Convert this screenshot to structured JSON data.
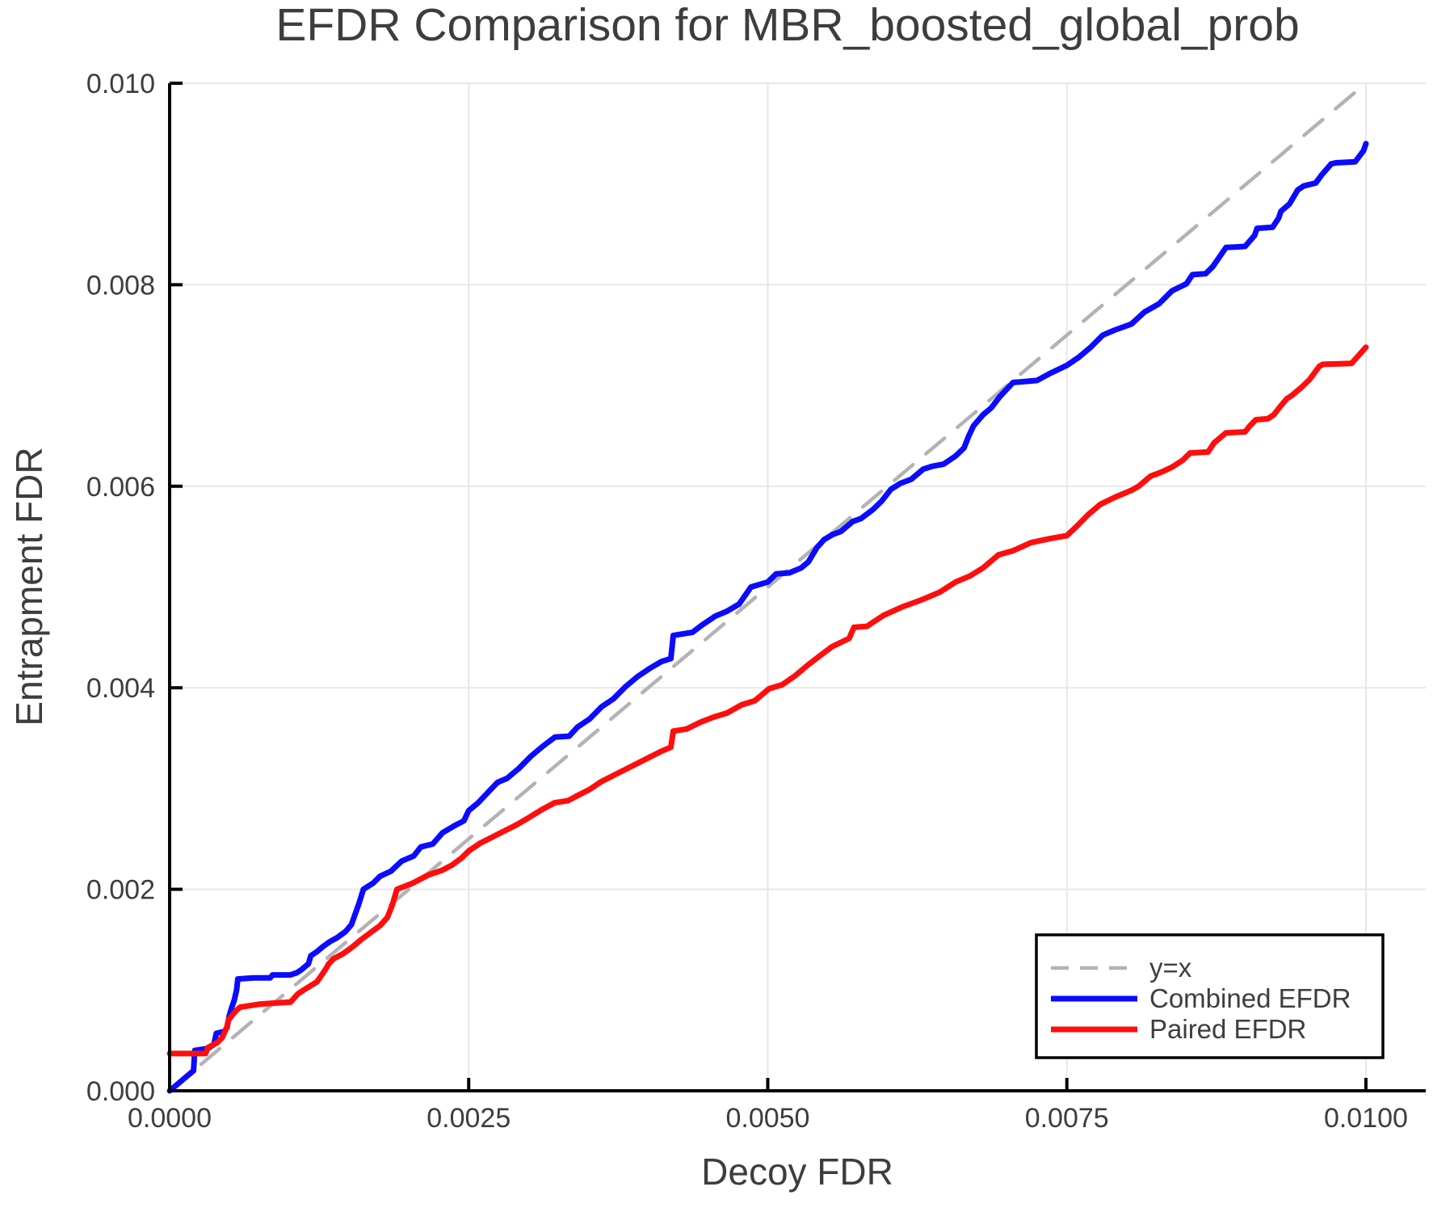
{
  "chart_data": {
    "type": "line",
    "title": "EFDR Comparison for MBR_boosted_global_prob",
    "xlabel": "Decoy FDR",
    "ylabel": "Entrapment FDR",
    "xlim": [
      0.0,
      0.0105
    ],
    "ylim": [
      0.0,
      0.01
    ],
    "grid": true,
    "legend_position": "lower right",
    "colors": {
      "reference": "#b3b3b3",
      "combined": "#0b0bff",
      "paired": "#ff0d0d",
      "gridline": "#e7e7e7",
      "spine": "#000000",
      "text": "#3d3d3d",
      "legend_border": "#000000",
      "legend_background": "#ffffff"
    },
    "xticks": {
      "values": [
        0.0,
        0.0025,
        0.005,
        0.0075,
        0.01
      ],
      "labels": [
        "0.0000",
        "0.0025",
        "0.0050",
        "0.0075",
        "0.0100"
      ]
    },
    "yticks": {
      "values": [
        0.0,
        0.002,
        0.004,
        0.006,
        0.008,
        0.01
      ],
      "labels": [
        "0.000",
        "0.002",
        "0.004",
        "0.006",
        "0.008",
        "0.010"
      ]
    },
    "series": [
      {
        "name": "y=x",
        "color": "#b3b3b3",
        "width": 4.5,
        "dash": [
          30,
          21
        ],
        "legend_dash": [
          22,
          14
        ],
        "points": [
          [
            0.0,
            0.0
          ],
          [
            0.01,
            0.01
          ]
        ]
      },
      {
        "name": "Combined EFDR",
        "color": "#0b0bff",
        "width": 7,
        "dash": null,
        "legend_dash": null,
        "points": [
          [
            0.0,
            0.0
          ],
          [
            0.0002,
            0.0002
          ],
          [
            0.00021,
            0.0004
          ],
          [
            0.00032,
            0.00042
          ],
          [
            0.00037,
            0.00046
          ],
          [
            0.00039,
            0.00057
          ],
          [
            0.00046,
            0.00059
          ],
          [
            0.00048,
            0.00063
          ],
          [
            0.0005,
            0.00075
          ],
          [
            0.00052,
            0.00083
          ],
          [
            0.00054,
            0.0009
          ],
          [
            0.00056,
            0.001
          ],
          [
            0.00057,
            0.00111
          ],
          [
            0.0007,
            0.00112
          ],
          [
            0.00084,
            0.00112
          ],
          [
            0.00086,
            0.00115
          ],
          [
            0.00101,
            0.00115
          ],
          [
            0.00106,
            0.00117
          ],
          [
            0.0011,
            0.0012
          ],
          [
            0.00113,
            0.00123
          ],
          [
            0.00116,
            0.00126
          ],
          [
            0.00117,
            0.0013
          ],
          [
            0.00118,
            0.00134
          ],
          [
            0.00123,
            0.00138
          ],
          [
            0.00128,
            0.00143
          ],
          [
            0.00134,
            0.00148
          ],
          [
            0.0014,
            0.00152
          ],
          [
            0.00147,
            0.00158
          ],
          [
            0.00152,
            0.00165
          ],
          [
            0.00155,
            0.00175
          ],
          [
            0.00158,
            0.00185
          ],
          [
            0.00162,
            0.002
          ],
          [
            0.0017,
            0.00206
          ],
          [
            0.00176,
            0.00213
          ],
          [
            0.00185,
            0.00218
          ],
          [
            0.00194,
            0.00228
          ],
          [
            0.00204,
            0.00233
          ],
          [
            0.0021,
            0.00242
          ],
          [
            0.0022,
            0.00245
          ],
          [
            0.00228,
            0.00256
          ],
          [
            0.00238,
            0.00263
          ],
          [
            0.00246,
            0.00268
          ],
          [
            0.0025,
            0.00278
          ],
          [
            0.00258,
            0.00286
          ],
          [
            0.00266,
            0.00296
          ],
          [
            0.00274,
            0.00306
          ],
          [
            0.00282,
            0.0031
          ],
          [
            0.00292,
            0.0032
          ],
          [
            0.00302,
            0.00332
          ],
          [
            0.00312,
            0.00342
          ],
          [
            0.00322,
            0.00351
          ],
          [
            0.00334,
            0.00352
          ],
          [
            0.00341,
            0.00361
          ],
          [
            0.00351,
            0.00369
          ],
          [
            0.00361,
            0.00381
          ],
          [
            0.00371,
            0.00389
          ],
          [
            0.00381,
            0.00401
          ],
          [
            0.00391,
            0.00411
          ],
          [
            0.00401,
            0.00419
          ],
          [
            0.00411,
            0.00426
          ],
          [
            0.00419,
            0.00429
          ],
          [
            0.00421,
            0.00452
          ],
          [
            0.00437,
            0.00455
          ],
          [
            0.00446,
            0.00463
          ],
          [
            0.00456,
            0.00471
          ],
          [
            0.00466,
            0.00476
          ],
          [
            0.00476,
            0.00483
          ],
          [
            0.00486,
            0.005
          ],
          [
            0.005,
            0.00505
          ],
          [
            0.00507,
            0.00513
          ],
          [
            0.00518,
            0.00514
          ],
          [
            0.00528,
            0.00519
          ],
          [
            0.00534,
            0.00525
          ],
          [
            0.00541,
            0.00539
          ],
          [
            0.00547,
            0.00547
          ],
          [
            0.00554,
            0.00552
          ],
          [
            0.00561,
            0.00555
          ],
          [
            0.00571,
            0.00565
          ],
          [
            0.00578,
            0.00568
          ],
          [
            0.00588,
            0.00577
          ],
          [
            0.00595,
            0.00585
          ],
          [
            0.00603,
            0.00597
          ],
          [
            0.00611,
            0.00603
          ],
          [
            0.0062,
            0.00607
          ],
          [
            0.0063,
            0.00617
          ],
          [
            0.00638,
            0.0062
          ],
          [
            0.00647,
            0.00622
          ],
          [
            0.00657,
            0.0063
          ],
          [
            0.00664,
            0.00638
          ],
          [
            0.00668,
            0.0065
          ],
          [
            0.00672,
            0.0066
          ],
          [
            0.0068,
            0.00671
          ],
          [
            0.00687,
            0.00678
          ],
          [
            0.00694,
            0.00689
          ],
          [
            0.00705,
            0.00703
          ],
          [
            0.00725,
            0.00705
          ],
          [
            0.00736,
            0.00712
          ],
          [
            0.0075,
            0.0072
          ],
          [
            0.0076,
            0.00728
          ],
          [
            0.0077,
            0.00738
          ],
          [
            0.0078,
            0.0075
          ],
          [
            0.0079,
            0.00755
          ],
          [
            0.00804,
            0.00761
          ],
          [
            0.00815,
            0.00773
          ],
          [
            0.00827,
            0.00781
          ],
          [
            0.00838,
            0.00794
          ],
          [
            0.0085,
            0.00801
          ],
          [
            0.00855,
            0.0081
          ],
          [
            0.00866,
            0.00811
          ],
          [
            0.00872,
            0.00818
          ],
          [
            0.00883,
            0.00837
          ],
          [
            0.00899,
            0.00838
          ],
          [
            0.00907,
            0.00849
          ],
          [
            0.00909,
            0.00856
          ],
          [
            0.00922,
            0.00857
          ],
          [
            0.00927,
            0.00866
          ],
          [
            0.00929,
            0.00873
          ],
          [
            0.00936,
            0.0088
          ],
          [
            0.00943,
            0.00894
          ],
          [
            0.00948,
            0.00898
          ],
          [
            0.00958,
            0.00901
          ],
          [
            0.00963,
            0.00909
          ],
          [
            0.00971,
            0.0092
          ],
          [
            0.00975,
            0.00921
          ],
          [
            0.00991,
            0.00922
          ],
          [
            0.00998,
            0.00933
          ],
          [
            0.01,
            0.0094
          ]
        ]
      },
      {
        "name": "Paired EFDR",
        "color": "#ff0d0d",
        "width": 7,
        "dash": null,
        "legend_dash": null,
        "points": [
          [
            0.0,
            0.00037
          ],
          [
            0.0003,
            0.00037
          ],
          [
            0.00032,
            0.00043
          ],
          [
            0.0004,
            0.00048
          ],
          [
            0.00044,
            0.00053
          ],
          [
            0.00046,
            0.00058
          ],
          [
            0.00048,
            0.00064
          ],
          [
            0.00049,
            0.0007
          ],
          [
            0.00053,
            0.00076
          ],
          [
            0.00056,
            0.0008
          ],
          [
            0.00059,
            0.00083
          ],
          [
            0.00064,
            0.00084
          ],
          [
            0.00075,
            0.00086
          ],
          [
            0.00087,
            0.00087
          ],
          [
            0.00101,
            0.00088
          ],
          [
            0.00104,
            0.00092
          ],
          [
            0.00107,
            0.00096
          ],
          [
            0.00112,
            0.001
          ],
          [
            0.00116,
            0.00103
          ],
          [
            0.00123,
            0.00108
          ],
          [
            0.00126,
            0.00113
          ],
          [
            0.0013,
            0.0012
          ],
          [
            0.00133,
            0.00126
          ],
          [
            0.00137,
            0.00131
          ],
          [
            0.00145,
            0.00136
          ],
          [
            0.00152,
            0.00142
          ],
          [
            0.0016,
            0.0015
          ],
          [
            0.00169,
            0.00158
          ],
          [
            0.00176,
            0.00164
          ],
          [
            0.00182,
            0.00172
          ],
          [
            0.00186,
            0.00184
          ],
          [
            0.0019,
            0.002
          ],
          [
            0.00203,
            0.00206
          ],
          [
            0.00216,
            0.00214
          ],
          [
            0.00228,
            0.00219
          ],
          [
            0.00236,
            0.00224
          ],
          [
            0.00244,
            0.00231
          ],
          [
            0.0025,
            0.00238
          ],
          [
            0.0026,
            0.00246
          ],
          [
            0.0027,
            0.00252
          ],
          [
            0.0028,
            0.00258
          ],
          [
            0.0029,
            0.00264
          ],
          [
            0.003,
            0.00271
          ],
          [
            0.00311,
            0.00279
          ],
          [
            0.00322,
            0.00286
          ],
          [
            0.00333,
            0.00288
          ],
          [
            0.00341,
            0.00293
          ],
          [
            0.00351,
            0.00299
          ],
          [
            0.00361,
            0.00307
          ],
          [
            0.00371,
            0.00313
          ],
          [
            0.00381,
            0.00319
          ],
          [
            0.00391,
            0.00325
          ],
          [
            0.00401,
            0.00331
          ],
          [
            0.00411,
            0.00337
          ],
          [
            0.00419,
            0.00341
          ],
          [
            0.00421,
            0.00357
          ],
          [
            0.00432,
            0.00359
          ],
          [
            0.00444,
            0.00366
          ],
          [
            0.00455,
            0.00371
          ],
          [
            0.00466,
            0.00375
          ],
          [
            0.00478,
            0.00383
          ],
          [
            0.00489,
            0.00387
          ],
          [
            0.00501,
            0.00399
          ],
          [
            0.00512,
            0.00403
          ],
          [
            0.00523,
            0.00412
          ],
          [
            0.00534,
            0.00423
          ],
          [
            0.00545,
            0.00433
          ],
          [
            0.00554,
            0.00441
          ],
          [
            0.00568,
            0.00449
          ],
          [
            0.00572,
            0.0046
          ],
          [
            0.00583,
            0.00461
          ],
          [
            0.00588,
            0.00465
          ],
          [
            0.00597,
            0.00472
          ],
          [
            0.00612,
            0.0048
          ],
          [
            0.00621,
            0.00484
          ],
          [
            0.0063,
            0.00488
          ],
          [
            0.00644,
            0.00495
          ],
          [
            0.00657,
            0.00505
          ],
          [
            0.00669,
            0.00511
          ],
          [
            0.0068,
            0.00519
          ],
          [
            0.00693,
            0.00532
          ],
          [
            0.00705,
            0.00536
          ],
          [
            0.0072,
            0.00544
          ],
          [
            0.00736,
            0.00548
          ],
          [
            0.0075,
            0.00551
          ],
          [
            0.00758,
            0.0056
          ],
          [
            0.00768,
            0.00572
          ],
          [
            0.00778,
            0.00582
          ],
          [
            0.0079,
            0.00589
          ],
          [
            0.00804,
            0.00596
          ],
          [
            0.0081,
            0.006
          ],
          [
            0.0082,
            0.0061
          ],
          [
            0.00829,
            0.00614
          ],
          [
            0.00838,
            0.00619
          ],
          [
            0.00847,
            0.00626
          ],
          [
            0.00853,
            0.00633
          ],
          [
            0.00868,
            0.00634
          ],
          [
            0.00873,
            0.00643
          ],
          [
            0.00883,
            0.00653
          ],
          [
            0.00899,
            0.00654
          ],
          [
            0.00903,
            0.0066
          ],
          [
            0.00908,
            0.00666
          ],
          [
            0.00918,
            0.00667
          ],
          [
            0.00923,
            0.00671
          ],
          [
            0.00929,
            0.0068
          ],
          [
            0.00934,
            0.00687
          ],
          [
            0.00938,
            0.0069
          ],
          [
            0.00946,
            0.00698
          ],
          [
            0.00953,
            0.00706
          ],
          [
            0.00961,
            0.00719
          ],
          [
            0.00964,
            0.00721
          ],
          [
            0.00988,
            0.00722
          ],
          [
            0.00994,
            0.0073
          ],
          [
            0.01,
            0.00738
          ]
        ]
      }
    ],
    "legend": {
      "entries": [
        "y=x",
        "Combined EFDR",
        "Paired EFDR"
      ]
    }
  }
}
